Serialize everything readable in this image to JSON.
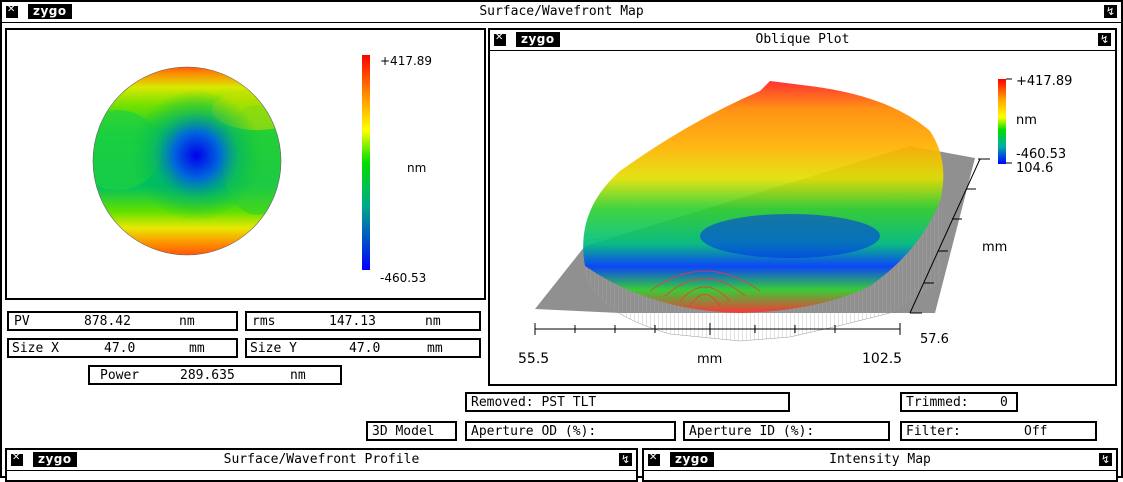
{
  "window": {
    "title": "Surface/Wavefront Map",
    "logo": "zygo"
  },
  "map": {
    "scale_max": "+417.89",
    "scale_min": "-460.53",
    "scale_unit": "nm"
  },
  "oblique": {
    "title": "Oblique Plot",
    "logo": "zygo",
    "scale_max": "+417.89",
    "scale_unit": "nm",
    "scale_min": "-460.53",
    "scale_extra": "104.6",
    "x_min": "55.5",
    "x_max": "102.5",
    "x_unit": "mm",
    "y_unit": "mm",
    "y_value": "57.6"
  },
  "stats": {
    "pv": {
      "label": "PV",
      "value": "878.42",
      "unit": "nm"
    },
    "rms": {
      "label": "rms",
      "value": "147.13",
      "unit": "nm"
    },
    "size_x": {
      "label": "Size X",
      "value": "47.0",
      "unit": "mm"
    },
    "size_y": {
      "label": "Size Y",
      "value": "47.0",
      "unit": "mm"
    },
    "power": {
      "label": "Power",
      "value": "289.635",
      "unit": "nm"
    }
  },
  "controls": {
    "removed": "Removed: PST TLT",
    "trimmed_label": "Trimmed:",
    "trimmed_value": "0",
    "model_3d": "3D Model",
    "aperture_od": "Aperture OD (%):",
    "aperture_id": "Aperture ID (%):",
    "filter_label": "Filter:",
    "filter_value": "Off"
  },
  "bottom_windows": {
    "profile_title": "Surface/Wavefront Profile",
    "intensity_title": "Intensity Map",
    "logo": "zygo"
  },
  "colors": {
    "high": "#ff0000",
    "mid": "#00cc33",
    "low": "#0000ff",
    "base_gray": "#909090"
  }
}
